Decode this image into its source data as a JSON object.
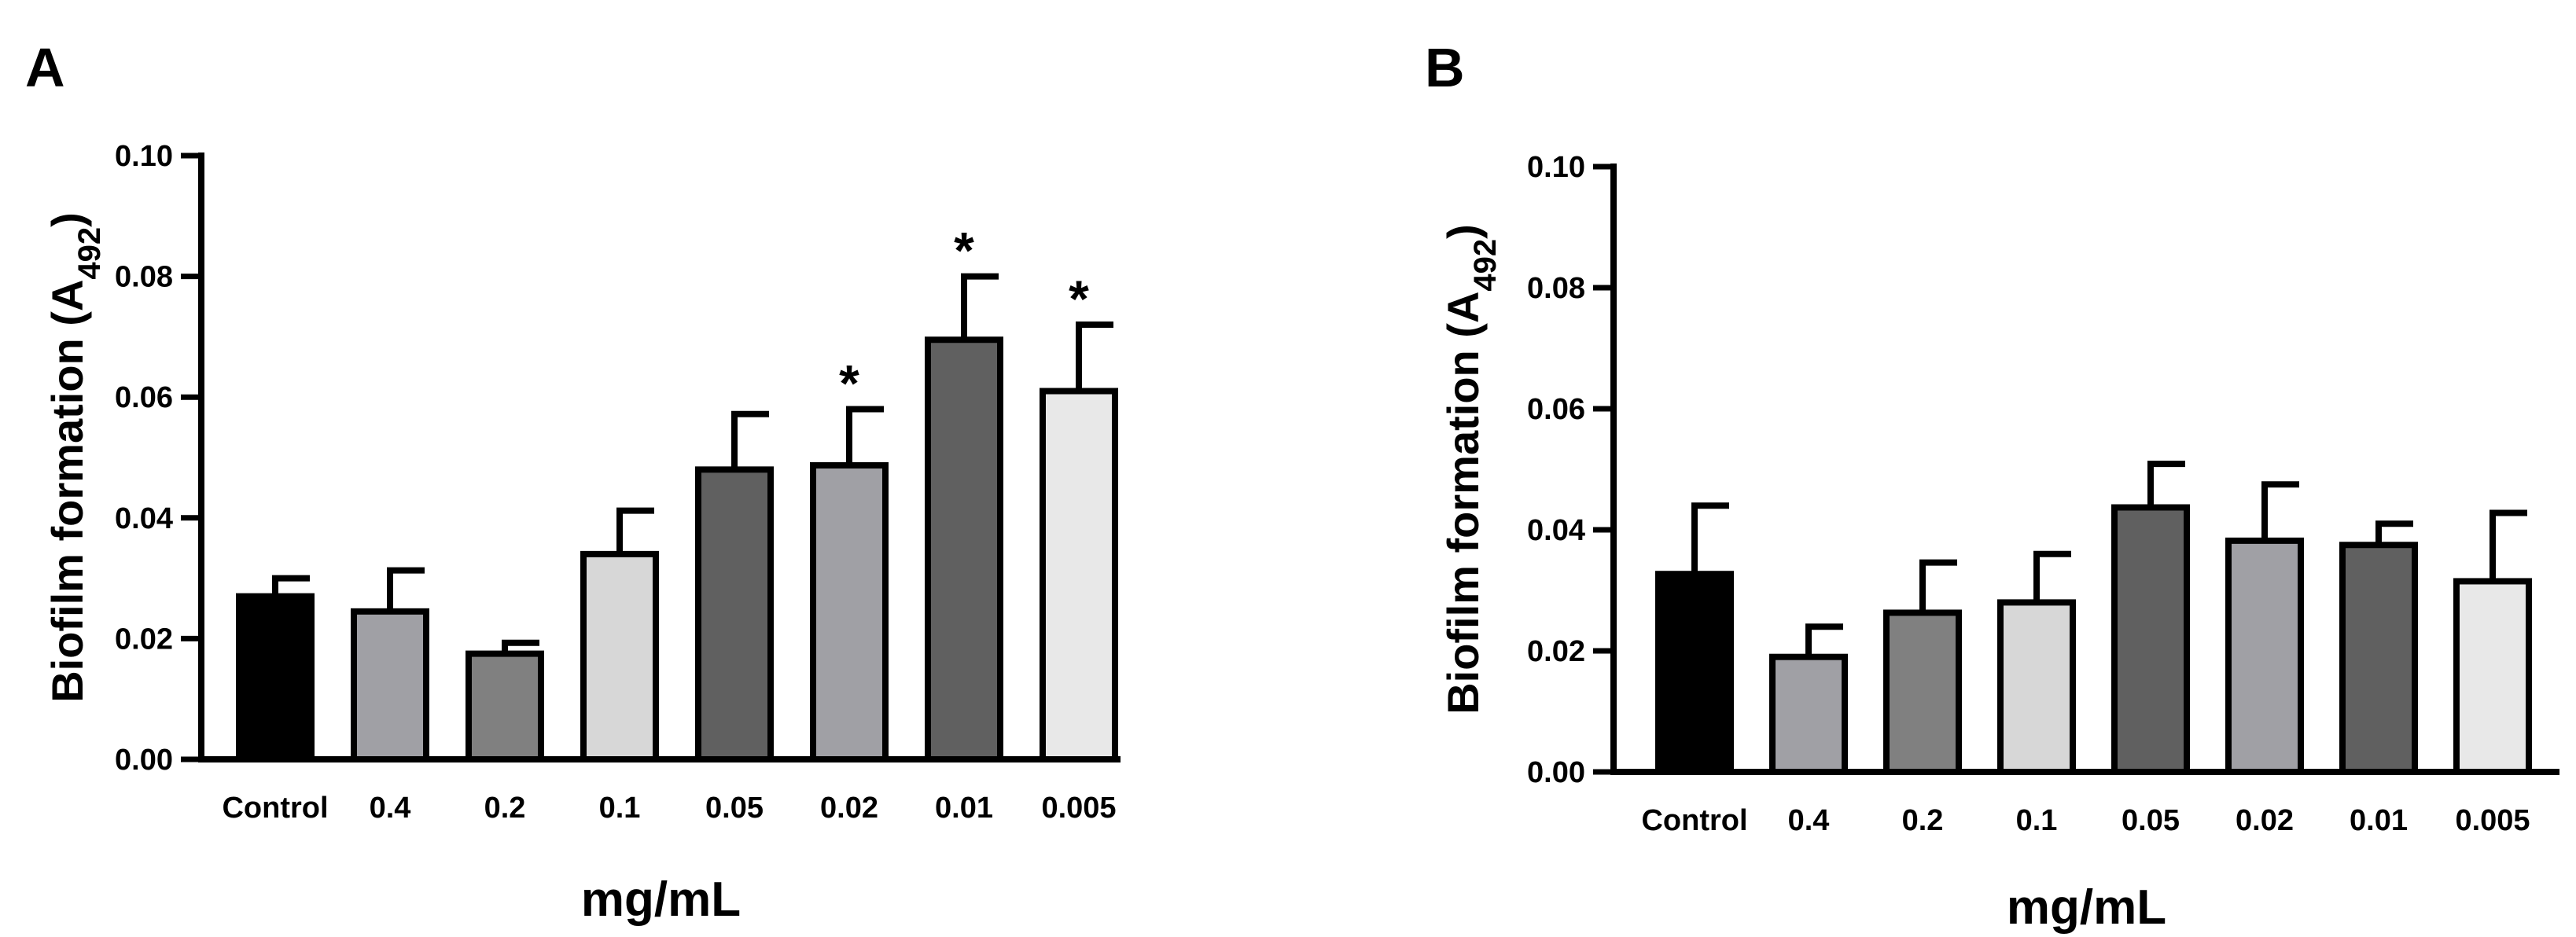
{
  "chart_data": [
    {
      "panel": "A",
      "type": "bar",
      "categories": [
        "Control",
        "0.4",
        "0.2",
        "0.1",
        "0.05",
        "0.02",
        "0.01",
        "0.005"
      ],
      "values": [
        0.027,
        0.0245,
        0.0175,
        0.034,
        0.048,
        0.0487,
        0.0695,
        0.061
      ],
      "errors": [
        0.003,
        0.0068,
        0.0018,
        0.0072,
        0.0092,
        0.0093,
        0.0105,
        0.011
      ],
      "colors": [
        "#000000",
        "#a0a0a5",
        "#808080",
        "#d7d7d7",
        "#606060",
        "#a0a0a5",
        "#606060",
        "#e8e8e8"
      ],
      "significance": [
        "",
        "",
        "",
        "",
        "",
        "*",
        "*",
        "*"
      ],
      "xlabel": "mg/mL",
      "ylabel_main": "Biofilm formation (A",
      "ylabel_sub": "492",
      "ylabel_end": ")",
      "ylim": [
        0,
        0.1
      ],
      "yticks": [
        "0.00",
        "0.02",
        "0.04",
        "0.06",
        "0.08",
        "0.10"
      ]
    },
    {
      "panel": "B",
      "type": "bar",
      "categories": [
        "Control",
        "0.4",
        "0.2",
        "0.1",
        "0.05",
        "0.02",
        "0.01",
        "0.005"
      ],
      "values": [
        0.0327,
        0.019,
        0.0263,
        0.028,
        0.0437,
        0.0382,
        0.0375,
        0.0315
      ],
      "errors": [
        0.0113,
        0.005,
        0.0083,
        0.008,
        0.0072,
        0.0093,
        0.0035,
        0.0113
      ],
      "colors": [
        "#000000",
        "#a0a0a5",
        "#808080",
        "#d7d7d7",
        "#606060",
        "#a0a0a5",
        "#606060",
        "#e8e8e8"
      ],
      "significance": [
        "",
        "",
        "",
        "",
        "",
        "",
        "",
        ""
      ],
      "xlabel": "mg/mL",
      "ylabel_main": "Biofilm formation (A",
      "ylabel_sub": "492",
      "ylabel_end": ")",
      "ylim": [
        0,
        0.1
      ],
      "yticks": [
        "0.00",
        "0.02",
        "0.04",
        "0.06",
        "0.08",
        "0.10"
      ]
    }
  ]
}
